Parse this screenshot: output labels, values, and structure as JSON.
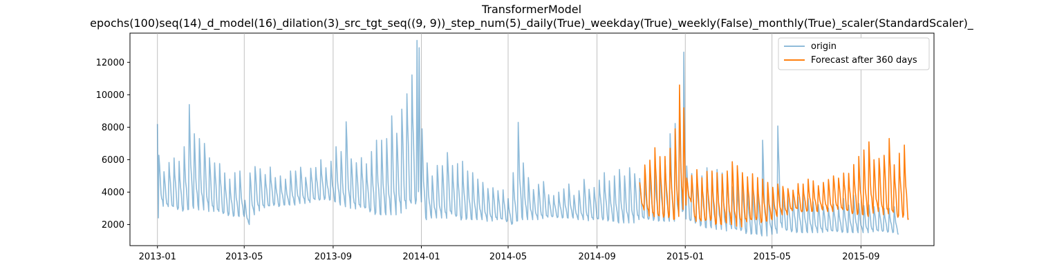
{
  "chart_data": {
    "type": "line",
    "title": "TransformerModel",
    "subtitle": "epochs(100)seq(14)_d_model(16)_dilation(3)_src_tgt_seq((9, 9))_step_num(5)_daily(True)_weekday(True)_weekly(False)_monthly(True)_scaler(StandardScaler)_",
    "xlabel": "",
    "ylabel": "",
    "x_ticks": [
      "2013-01",
      "2013-05",
      "2013-09",
      "2014-01",
      "2014-05",
      "2014-09",
      "2015-01",
      "2015-05",
      "2015-09"
    ],
    "y_ticks": [
      2000,
      4000,
      6000,
      8000,
      10000,
      12000
    ],
    "xlim": [
      "2012-11-24",
      "2015-12-11"
    ],
    "ylim": [
      700,
      13800
    ],
    "grid": "vertical",
    "legend_position": "top-right",
    "series": [
      {
        "name": "origin",
        "color": "#1f77b4",
        "opacity": 0.5,
        "x": [
          "2013-01-01",
          "2013-01-03",
          "2013-01-10",
          "2013-01-17",
          "2013-01-24",
          "2013-01-31",
          "2013-02-07",
          "2013-02-14",
          "2013-02-21",
          "2013-02-28",
          "2013-03-07",
          "2013-03-14",
          "2013-03-21",
          "2013-03-28",
          "2013-04-04",
          "2013-04-11",
          "2013-04-18",
          "2013-04-25",
          "2013-05-02",
          "2013-05-09",
          "2013-05-16",
          "2013-05-23",
          "2013-05-30",
          "2013-06-06",
          "2013-06-13",
          "2013-06-20",
          "2013-06-27",
          "2013-07-04",
          "2013-07-11",
          "2013-07-18",
          "2013-07-25",
          "2013-08-01",
          "2013-08-08",
          "2013-08-15",
          "2013-08-22",
          "2013-08-29",
          "2013-09-05",
          "2013-09-12",
          "2013-09-19",
          "2013-09-26",
          "2013-10-03",
          "2013-10-10",
          "2013-10-17",
          "2013-10-24",
          "2013-10-31",
          "2013-11-07",
          "2013-11-14",
          "2013-11-21",
          "2013-11-28",
          "2013-12-05",
          "2013-12-12",
          "2013-12-19",
          "2013-12-26",
          "2013-12-29",
          "2014-01-02",
          "2014-01-09",
          "2014-01-16",
          "2014-01-23",
          "2014-01-30",
          "2014-02-06",
          "2014-02-13",
          "2014-02-20",
          "2014-02-27",
          "2014-03-06",
          "2014-03-13",
          "2014-03-20",
          "2014-03-27",
          "2014-04-03",
          "2014-04-10",
          "2014-04-17",
          "2014-04-24",
          "2014-05-01",
          "2014-05-08",
          "2014-05-15",
          "2014-05-22",
          "2014-05-29",
          "2014-06-05",
          "2014-06-12",
          "2014-06-19",
          "2014-06-26",
          "2014-07-03",
          "2014-07-10",
          "2014-07-17",
          "2014-07-24",
          "2014-07-31",
          "2014-08-07",
          "2014-08-14",
          "2014-08-21",
          "2014-08-28",
          "2014-09-04",
          "2014-09-11",
          "2014-09-18",
          "2014-09-25",
          "2014-10-02",
          "2014-10-09",
          "2014-10-16",
          "2014-10-23",
          "2014-10-30",
          "2014-11-06",
          "2014-11-13",
          "2014-11-20",
          "2014-11-27",
          "2014-12-04",
          "2014-12-11",
          "2014-12-18",
          "2014-12-24",
          "2014-12-30",
          "2015-01-03",
          "2015-01-10",
          "2015-01-17",
          "2015-01-24",
          "2015-01-31",
          "2015-02-07",
          "2015-02-14",
          "2015-02-21",
          "2015-02-28",
          "2015-03-07",
          "2015-03-14",
          "2015-03-21",
          "2015-03-28",
          "2015-04-04",
          "2015-04-11",
          "2015-04-18",
          "2015-04-25",
          "2015-05-02",
          "2015-05-09",
          "2015-05-16",
          "2015-05-23",
          "2015-05-30",
          "2015-06-06",
          "2015-06-13",
          "2015-06-20",
          "2015-06-27",
          "2015-07-04",
          "2015-07-11",
          "2015-07-18",
          "2015-07-25",
          "2015-08-01",
          "2015-08-08",
          "2015-08-15",
          "2015-08-22",
          "2015-08-29",
          "2015-09-05",
          "2015-09-12",
          "2015-09-19",
          "2015-09-26",
          "2015-10-03",
          "2015-10-10",
          "2015-10-17",
          "2015-10-24",
          "2015-10-31"
        ],
        "peaks": [
          8200,
          6400,
          5400,
          6000,
          6200,
          5900,
          6800,
          9400,
          7600,
          7300,
          7100,
          6300,
          6000,
          5900,
          5200,
          4800,
          5200,
          5300,
          3500,
          5200,
          5700,
          5600,
          5200,
          5600,
          4900,
          5000,
          4800,
          5300,
          5300,
          5600,
          5000,
          5600,
          5600,
          6000,
          5500,
          5900,
          6800,
          6500,
          8400,
          6200,
          6000,
          6300,
          5800,
          6500,
          7200,
          7200,
          7300,
          8700,
          7800,
          9500,
          10500,
          11500,
          13350,
          12900,
          7900,
          5800,
          5000,
          5700,
          5800,
          6700,
          5800,
          5800,
          5900,
          5300,
          5200,
          4800,
          4600,
          4300,
          4400,
          4200,
          4200,
          3600,
          5200,
          8300,
          5800,
          4900,
          4200,
          4600,
          4800,
          3900,
          3800,
          4000,
          4200,
          4500,
          3800,
          4100,
          4900,
          4300,
          4400,
          4800,
          5200,
          4700,
          5000,
          5400,
          5000,
          5600,
          5300,
          5000,
          4800,
          5400,
          5400,
          5600,
          6000,
          7600,
          8300,
          9500,
          13300,
          5800,
          5200,
          5100,
          5000,
          5500,
          5200,
          5400,
          5300,
          5100,
          4500,
          4600,
          4800,
          4300,
          4200,
          4000,
          7200,
          4500,
          4000,
          8500,
          4000,
          3800,
          3800,
          3700,
          3900,
          3600,
          3400,
          3300,
          3200,
          3100,
          3300,
          3100,
          3600,
          3200,
          3800,
          3300,
          3200,
          3300,
          3200,
          3100,
          3000,
          3000,
          3100
        ],
        "troughs": [
          1950,
          3100,
          3000,
          2900,
          2800,
          2800,
          2900,
          3000,
          2900,
          2900,
          2800,
          2700,
          2600,
          2500,
          2500,
          2500,
          2500,
          2500,
          2000,
          2600,
          2800,
          2900,
          3000,
          3100,
          3100,
          3200,
          3200,
          3200,
          3300,
          3300,
          3300,
          3400,
          3400,
          3500,
          3500,
          3400,
          3200,
          3100,
          3000,
          2900,
          2900,
          2800,
          2700,
          2600,
          2600,
          2600,
          2600,
          2600,
          2700,
          2700,
          2800,
          2900,
          3000,
          2300,
          2300,
          2400,
          2400,
          2400,
          2300,
          2400,
          2300,
          2200,
          2300,
          2300,
          2300,
          2300,
          2200,
          2200,
          2200,
          2200,
          2100,
          2000,
          2200,
          2300,
          2300,
          2300,
          2300,
          2300,
          2300,
          2400,
          2400,
          2400,
          2400,
          2400,
          2300,
          2300,
          2200,
          2200,
          2200,
          2200,
          2200,
          2200,
          2100,
          2100,
          2100,
          2100,
          2200,
          2200,
          2200,
          2200,
          2200,
          2200,
          2200,
          2200,
          2300,
          2300,
          2100,
          2000,
          2000,
          1900,
          1800,
          1800,
          1700,
          1700,
          1600,
          1600,
          1500,
          1500,
          1400,
          1400,
          1400,
          1300,
          1300,
          1400,
          1400,
          1400,
          1500,
          1500,
          1500,
          1500,
          1500,
          1500,
          1500,
          1500,
          1500,
          1500,
          1500,
          1500,
          1500,
          1500,
          1500,
          1500,
          1500,
          1500,
          1500,
          1500,
          1500,
          1500,
          1400
        ]
      },
      {
        "name": "Forecast after 360 days",
        "color": "#ff7f0e",
        "opacity": 1,
        "x": [
          "2014-10-30",
          "2014-11-06",
          "2014-11-13",
          "2014-11-20",
          "2014-11-27",
          "2014-12-04",
          "2014-12-11",
          "2014-12-18",
          "2014-12-24",
          "2014-12-30",
          "2015-01-03",
          "2015-01-10",
          "2015-01-17",
          "2015-01-24",
          "2015-01-31",
          "2015-02-07",
          "2015-02-14",
          "2015-02-21",
          "2015-02-28",
          "2015-03-07",
          "2015-03-14",
          "2015-03-21",
          "2015-03-28",
          "2015-04-04",
          "2015-04-11",
          "2015-04-18",
          "2015-04-25",
          "2015-05-02",
          "2015-05-09",
          "2015-05-16",
          "2015-05-23",
          "2015-05-30",
          "2015-06-06",
          "2015-06-13",
          "2015-06-20",
          "2015-06-27",
          "2015-07-04",
          "2015-07-11",
          "2015-07-18",
          "2015-07-25",
          "2015-08-01",
          "2015-08-08",
          "2015-08-15",
          "2015-08-22",
          "2015-08-29",
          "2015-09-05",
          "2015-09-12",
          "2015-09-19",
          "2015-09-26",
          "2015-10-03",
          "2015-10-10",
          "2015-10-17",
          "2015-10-24",
          "2015-10-31"
        ],
        "peaks": [
          4600,
          5800,
          6200,
          7000,
          6300,
          6200,
          6700,
          7900,
          10600,
          9200,
          4900,
          5200,
          5600,
          5000,
          5300,
          5300,
          5200,
          5100,
          5300,
          5900,
          5800,
          5400,
          5100,
          5200,
          4900,
          4800,
          4600,
          4300,
          4500,
          4400,
          4300,
          4200,
          4600,
          4500,
          4800,
          4700,
          4400,
          4600,
          4800,
          5100,
          5000,
          5300,
          5200,
          5700,
          6200,
          6600,
          7100,
          6000,
          6200,
          6500,
          7600,
          5800,
          6400,
          6900
        ],
        "troughs": [
          2900,
          2500,
          2300,
          2200,
          2300,
          2400,
          2300,
          2500,
          2800,
          3200,
          3400,
          2100,
          2000,
          2100,
          2200,
          2000,
          2000,
          2100,
          2000,
          1900,
          1800,
          2000,
          2100,
          2200,
          2100,
          2200,
          2300,
          2500,
          2600,
          2600,
          2800,
          2900,
          2700,
          2800,
          2800,
          2800,
          2900,
          2800,
          2800,
          2900,
          2800,
          2700,
          2600,
          2600,
          2600,
          2500,
          2700,
          2800,
          2600,
          2500,
          2400,
          2300,
          2400,
          2300
        ]
      }
    ]
  }
}
